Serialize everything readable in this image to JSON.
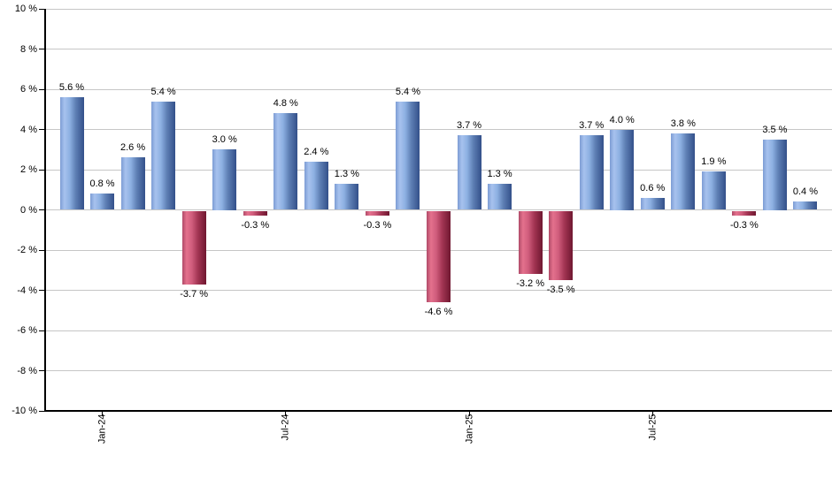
{
  "chart_data": {
    "type": "bar",
    "description_note": "monthly percent returns bar chart",
    "bars": [
      {
        "value": 5.6,
        "label": "5.6 %"
      },
      {
        "value": 0.8,
        "label": "0.8 %"
      },
      {
        "value": 2.6,
        "label": "2.6 %"
      },
      {
        "value": 5.4,
        "label": "5.4 %"
      },
      {
        "value": -3.7,
        "label": "-3.7 %"
      },
      {
        "value": 3.0,
        "label": "3.0 %"
      },
      {
        "value": -0.3,
        "label": "-0.3 %"
      },
      {
        "value": 4.8,
        "label": "4.8 %"
      },
      {
        "value": 2.4,
        "label": "2.4 %"
      },
      {
        "value": 1.3,
        "label": "1.3 %"
      },
      {
        "value": -0.3,
        "label": "-0.3 %"
      },
      {
        "value": 5.4,
        "label": "5.4 %"
      },
      {
        "value": -4.6,
        "label": "-4.6 %"
      },
      {
        "value": 3.7,
        "label": "3.7 %"
      },
      {
        "value": 1.3,
        "label": "1.3 %"
      },
      {
        "value": -3.2,
        "label": "-3.2 %"
      },
      {
        "value": -3.5,
        "label": "-3.5 %"
      },
      {
        "value": 3.7,
        "label": "3.7 %"
      },
      {
        "value": 4.0,
        "label": "4.0 %"
      },
      {
        "value": 0.6,
        "label": "0.6 %"
      },
      {
        "value": 3.8,
        "label": "3.8 %"
      },
      {
        "value": 1.9,
        "label": "1.9 %"
      },
      {
        "value": -0.3,
        "label": "-0.3 %"
      },
      {
        "value": 3.5,
        "label": "3.5 %"
      },
      {
        "value": 0.4,
        "label": "0.4 %"
      }
    ],
    "y_axis": {
      "min": -10,
      "max": 10,
      "tick_step": 2,
      "ticks": [
        {
          "value": 10,
          "label": "10 %"
        },
        {
          "value": 8,
          "label": "8 %"
        },
        {
          "value": 6,
          "label": "6 %"
        },
        {
          "value": 4,
          "label": "4 %"
        },
        {
          "value": 2,
          "label": "2 %"
        },
        {
          "value": 0,
          "label": "0 %"
        },
        {
          "value": -2,
          "label": "-2 %"
        },
        {
          "value": -4,
          "label": "-4 %"
        },
        {
          "value": -6,
          "label": "-6 %"
        },
        {
          "value": -8,
          "label": "-8 %"
        },
        {
          "value": -10,
          "label": "-10 %"
        }
      ]
    },
    "x_axis": {
      "ticks": [
        {
          "bar_index": 1,
          "label": "Jan-24"
        },
        {
          "bar_index": 7,
          "label": "Jul-24"
        },
        {
          "bar_index": 13,
          "label": "Jan-25"
        },
        {
          "bar_index": 19,
          "label": "Jul-25"
        }
      ]
    },
    "grid": true,
    "legend": "none",
    "colors": {
      "positive_bar_gradient": [
        "#7d9cd4",
        "#a7c2ee",
        "#8db0e2",
        "#5e7fb4",
        "#33508a"
      ],
      "negative_bar_gradient": [
        "#b04a68",
        "#e4718d",
        "#d05d7d",
        "#a33553",
        "#6f1730"
      ],
      "gridline": "#c6c6c6",
      "axis": "#000000",
      "label_text": "#000000",
      "background": "#ffffff"
    }
  }
}
